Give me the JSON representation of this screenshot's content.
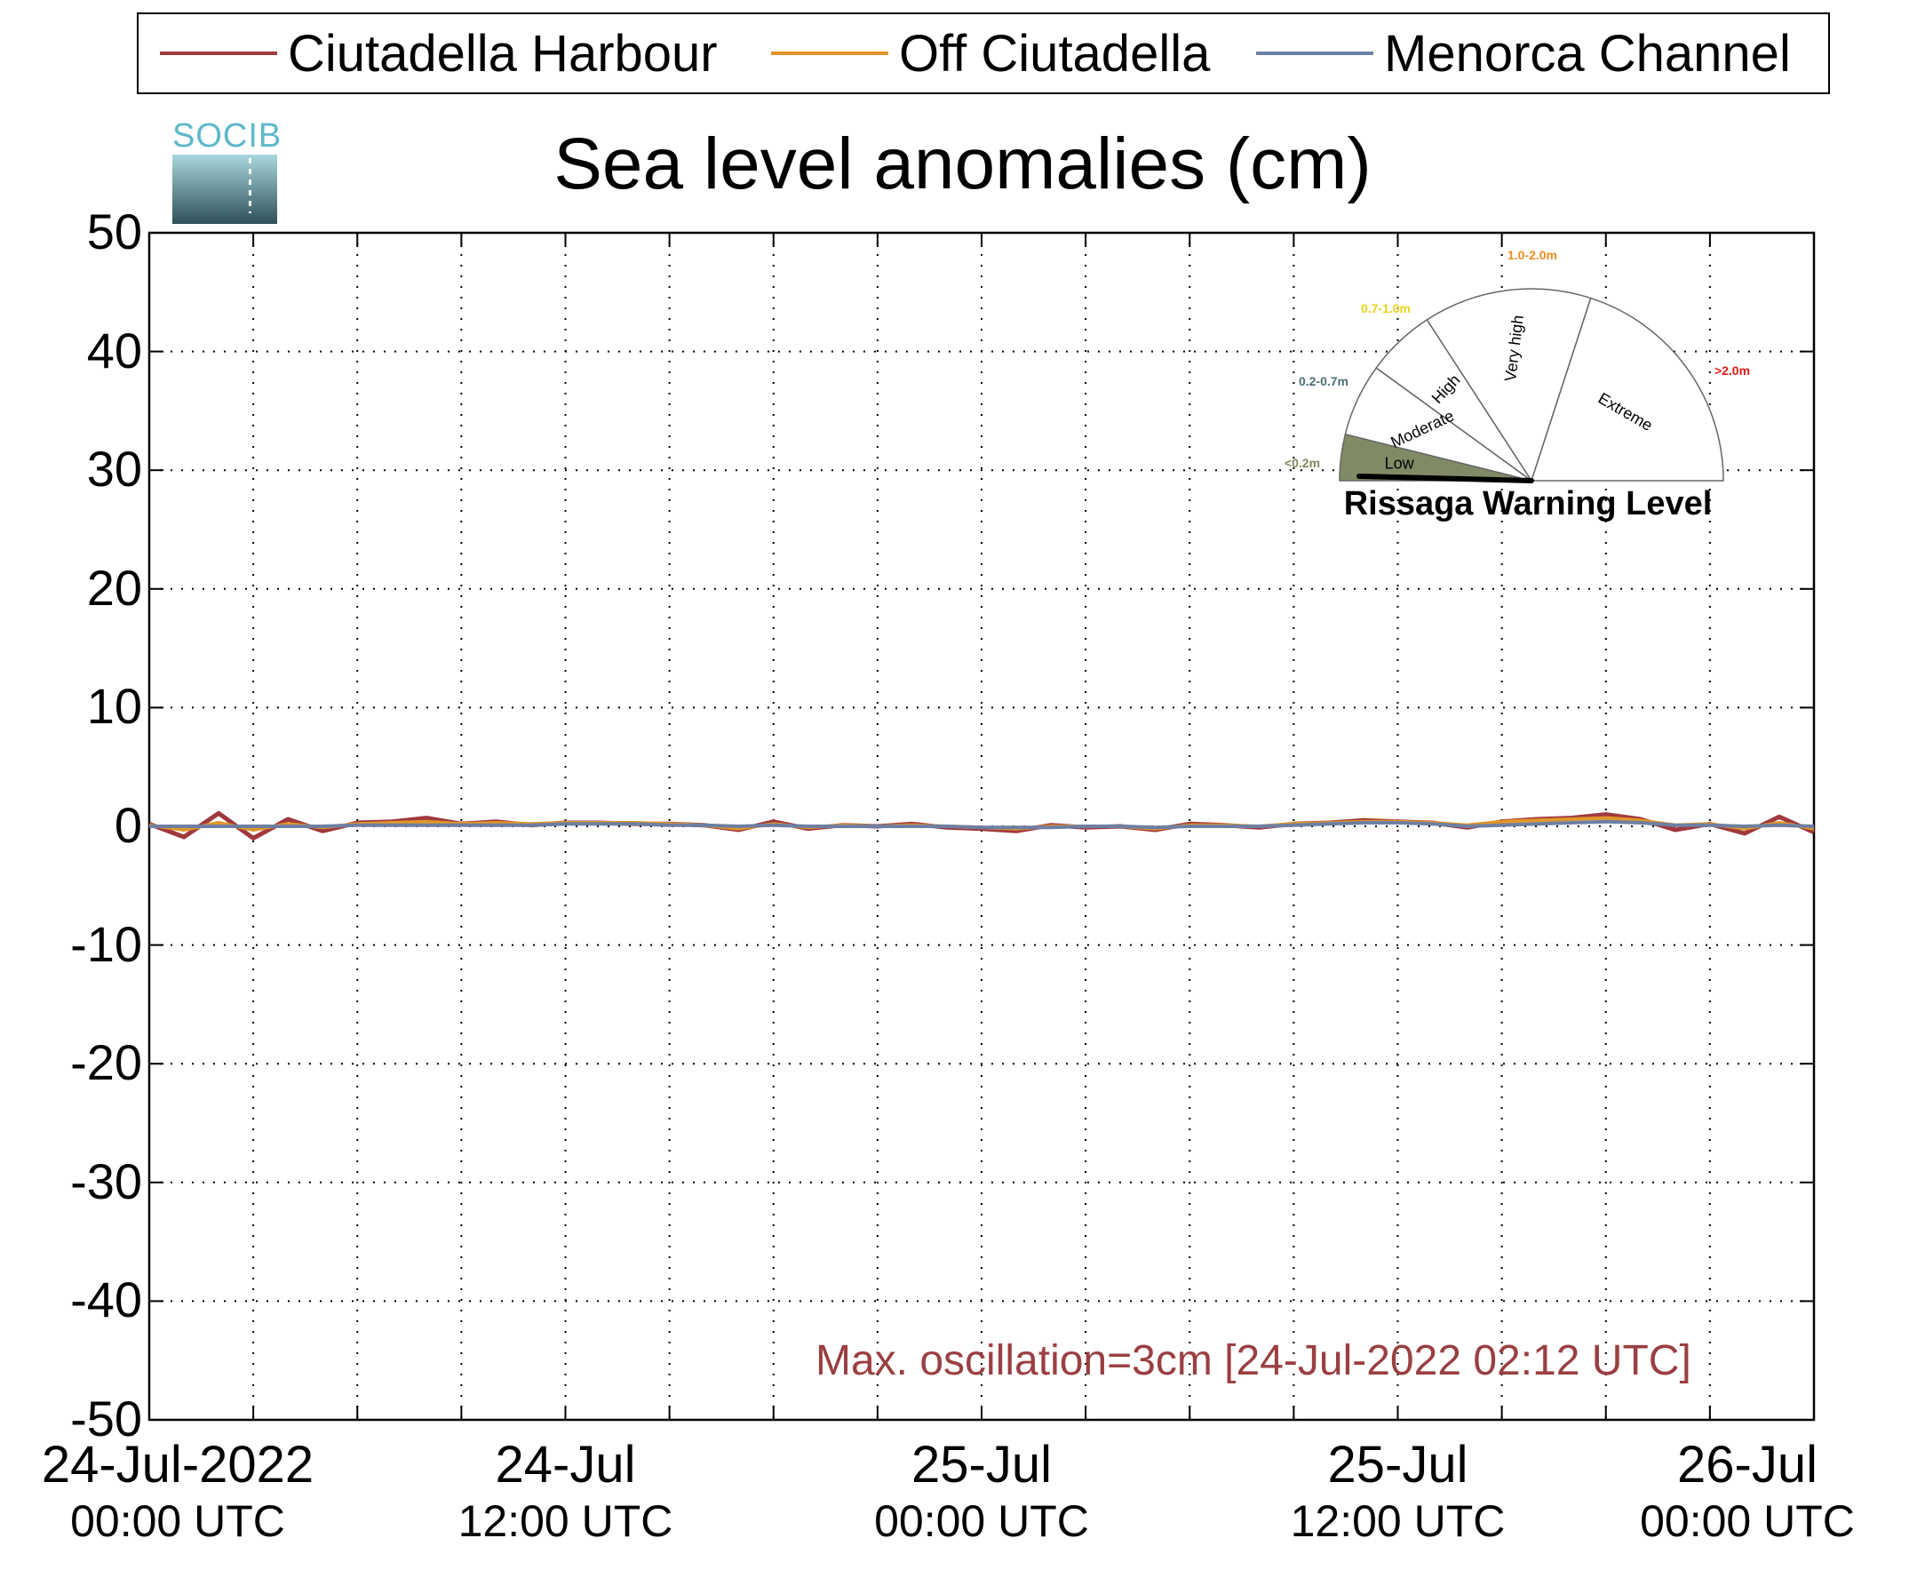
{
  "legend": {
    "items": [
      {
        "label": "Ciutadella Harbour",
        "color": "#a0393e"
      },
      {
        "label": "Off Ciutadella",
        "color": "#e0962a"
      },
      {
        "label": "Menorca Channel",
        "color": "#6d7fa3"
      }
    ]
  },
  "logo": {
    "text": "SOCIB"
  },
  "annotation": "Max. oscillation=3cm [24-Jul-2022 02:12 UTC]",
  "gauge": {
    "title": "Rissaga Warning Level",
    "sectors": [
      {
        "name": "Low",
        "range": "<0.2m",
        "range_color": "#7d8a5e"
      },
      {
        "name": "Moderate",
        "range": "0.2-0.7m",
        "range_color": "#4c6e78"
      },
      {
        "name": "High",
        "range": "0.7-1.0m",
        "range_color": "#e8d21a"
      },
      {
        "name": "Very high",
        "range": "1.0-2.0m",
        "range_color": "#f08c1e"
      },
      {
        "name": "Extreme",
        "range": ">2.0m",
        "range_color": "#e01818"
      }
    ],
    "active_sector": "Low"
  },
  "chart_data": {
    "type": "line",
    "title": "Sea level anomalies (cm)",
    "xlabel": "",
    "ylabel": "",
    "ylim": [
      -50,
      50
    ],
    "yticks": [
      50,
      40,
      30,
      20,
      10,
      0,
      -10,
      -20,
      -30,
      -40,
      -50
    ],
    "xlim_hours": [
      0,
      48
    ],
    "xticks": [
      {
        "hour": 0,
        "date": "24-Jul-2022",
        "time": "00:00 UTC"
      },
      {
        "hour": 12,
        "date": "24-Jul",
        "time": "12:00 UTC"
      },
      {
        "hour": 24,
        "date": "25-Jul",
        "time": "00:00 UTC"
      },
      {
        "hour": 36,
        "date": "25-Jul",
        "time": "12:00 UTC"
      },
      {
        "hour": 48,
        "date": "26-Jul",
        "time": "00:00 UTC"
      }
    ],
    "grid": true,
    "legend_position": "top",
    "series": [
      {
        "name": "Ciutadella Harbour",
        "color": "#a0393e",
        "x": [
          0,
          1,
          2,
          3,
          4,
          5,
          6,
          7,
          8,
          9,
          10,
          11,
          12,
          13,
          14,
          15,
          16,
          17,
          18,
          19,
          20,
          21,
          22,
          23,
          24,
          25,
          26,
          27,
          28,
          29,
          30,
          31,
          32,
          33,
          34,
          35,
          36,
          37,
          38,
          39,
          40,
          41,
          42,
          43,
          44,
          45,
          46,
          47,
          48
        ],
        "y": [
          0.2,
          -0.9,
          1.1,
          -1.0,
          0.6,
          -0.4,
          0.3,
          0.4,
          0.7,
          0.2,
          0.4,
          0.1,
          0.3,
          0.3,
          0.2,
          0.2,
          0.1,
          -0.3,
          0.4,
          -0.2,
          0.1,
          0.0,
          0.2,
          -0.1,
          -0.2,
          -0.4,
          0.1,
          -0.1,
          0.0,
          -0.3,
          0.2,
          0.1,
          -0.1,
          0.2,
          0.3,
          0.5,
          0.4,
          0.3,
          -0.1,
          0.4,
          0.6,
          0.7,
          1.0,
          0.6,
          -0.3,
          0.2,
          -0.6,
          0.8,
          -0.5
        ]
      },
      {
        "name": "Off Ciutadella",
        "color": "#e0962a",
        "x": [
          0,
          1,
          2,
          3,
          4,
          5,
          6,
          7,
          8,
          9,
          10,
          11,
          12,
          13,
          14,
          15,
          16,
          17,
          18,
          19,
          20,
          21,
          22,
          23,
          24,
          25,
          26,
          27,
          28,
          29,
          30,
          31,
          32,
          33,
          34,
          35,
          36,
          37,
          38,
          39,
          40,
          41,
          42,
          43,
          44,
          45,
          46,
          47,
          48
        ],
        "y": [
          0.1,
          -0.3,
          0.3,
          -0.3,
          0.2,
          -0.1,
          0.2,
          0.3,
          0.4,
          0.2,
          0.3,
          0.2,
          0.3,
          0.3,
          0.3,
          0.2,
          0.1,
          -0.2,
          0.2,
          -0.1,
          0.1,
          0.0,
          0.1,
          0.0,
          -0.1,
          -0.2,
          0.0,
          0.0,
          0.0,
          -0.2,
          0.1,
          0.1,
          0.0,
          0.2,
          0.3,
          0.4,
          0.4,
          0.3,
          0.1,
          0.4,
          0.5,
          0.6,
          0.7,
          0.5,
          0.1,
          0.2,
          -0.2,
          0.3,
          -0.2
        ]
      },
      {
        "name": "Menorca Channel",
        "color": "#6d7fa3",
        "x": [
          0,
          1,
          2,
          3,
          4,
          5,
          6,
          7,
          8,
          9,
          10,
          11,
          12,
          13,
          14,
          15,
          16,
          17,
          18,
          19,
          20,
          21,
          22,
          23,
          24,
          25,
          26,
          27,
          28,
          29,
          30,
          31,
          32,
          33,
          34,
          35,
          36,
          37,
          38,
          39,
          40,
          41,
          42,
          43,
          44,
          45,
          46,
          47,
          48
        ],
        "y": [
          0.0,
          0.0,
          0.0,
          0.0,
          0.0,
          0.0,
          0.1,
          0.1,
          0.1,
          0.1,
          0.1,
          0.1,
          0.2,
          0.2,
          0.2,
          0.1,
          0.1,
          0.0,
          0.1,
          0.0,
          0.0,
          0.0,
          0.0,
          0.0,
          -0.1,
          -0.1,
          -0.1,
          0.0,
          0.0,
          -0.1,
          0.0,
          0.0,
          0.0,
          0.1,
          0.2,
          0.3,
          0.3,
          0.2,
          0.0,
          0.1,
          0.2,
          0.3,
          0.4,
          0.3,
          0.1,
          0.1,
          0.0,
          0.1,
          0.0
        ]
      }
    ]
  }
}
